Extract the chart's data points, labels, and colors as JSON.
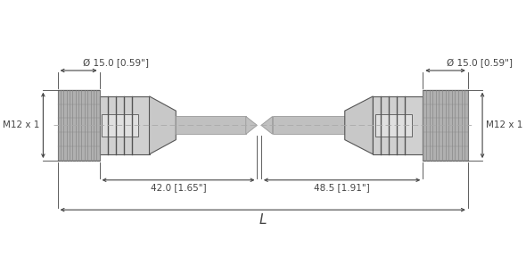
{
  "bg_color": "#ffffff",
  "line_color": "#555555",
  "dim_color": "#444444",
  "label_left_m12": "M12 x 1",
  "label_right_m12": "M12 x 1",
  "label_dia_left": "Ø 15.0 [0.59\"]",
  "label_dia_right": "Ø 15.0 [0.59\"]",
  "label_len_left": "42.0 [1.65\"]",
  "label_len_right": "48.5 [1.91\"]",
  "label_L": "L",
  "font_size_dim": 7.5,
  "font_size_label": 7.5,
  "knurl_fill": "#b0b0b0",
  "body_fill": "#d0d0d0",
  "taper_fill": "#c8c8c8",
  "cable_fill": "#c0c0c0",
  "groove_color": "#666666",
  "center_line_color": "#aaaaaa"
}
